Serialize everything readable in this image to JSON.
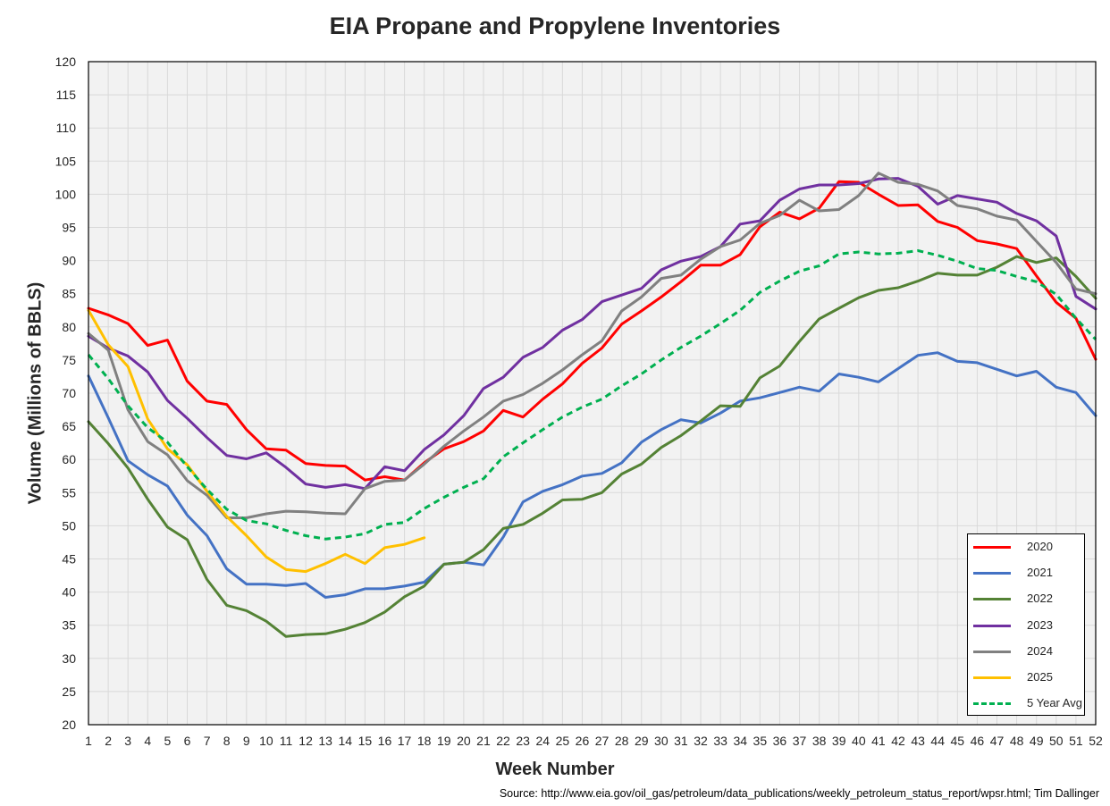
{
  "chart_data": {
    "type": "line",
    "title": "EIA Propane and Propylene Inventories",
    "xlabel": "Week Number",
    "ylabel": "Volume (Millions of BBLS)",
    "source": "Source: http://www.eia.gov/oil_gas/petroleum/data_publications/weekly_petroleum_status_report/wpsr.html; Tim Dallinger",
    "xlim": [
      1,
      52
    ],
    "ylim": [
      20,
      120
    ],
    "yticks": [
      20,
      25,
      30,
      35,
      40,
      45,
      50,
      55,
      60,
      65,
      70,
      75,
      80,
      85,
      90,
      95,
      100,
      105,
      110,
      115,
      120
    ],
    "grid": true,
    "legend_position": "bottom-right",
    "series": [
      {
        "name": "2020",
        "color": "#ff0000",
        "dashed": false,
        "values": [
          82.8,
          81.8,
          80.5,
          77.2,
          78.0,
          71.8,
          68.8,
          68.3,
          64.5,
          61.6,
          61.4,
          59.4,
          59.1,
          59.0,
          56.9,
          57.4,
          56.9,
          59.5,
          61.6,
          62.7,
          64.3,
          67.4,
          66.4,
          69.1,
          71.4,
          74.5,
          76.8,
          80.4,
          82.4,
          84.5,
          86.8,
          89.3,
          89.3,
          90.9,
          95.1,
          97.3,
          96.3,
          97.9,
          101.9,
          101.8,
          100.0,
          98.3,
          98.4,
          95.9,
          95.0,
          93.0,
          92.5,
          91.8,
          87.7,
          83.7,
          81.3,
          75.1
        ]
      },
      {
        "name": "2021",
        "color": "#4472c4",
        "dashed": false,
        "values": [
          72.6,
          66.3,
          59.8,
          57.7,
          56.0,
          51.6,
          48.5,
          43.5,
          41.2,
          41.2,
          41.0,
          41.3,
          39.2,
          39.6,
          40.5,
          40.5,
          40.9,
          41.5,
          44.2,
          44.5,
          44.1,
          48.3,
          53.6,
          55.2,
          56.2,
          57.5,
          57.9,
          59.5,
          62.6,
          64.5,
          66.0,
          65.5,
          67.0,
          68.8,
          69.3,
          70.1,
          70.9,
          70.3,
          72.9,
          72.4,
          71.7,
          73.7,
          75.7,
          76.1,
          74.8,
          74.6,
          73.6,
          72.6,
          73.3,
          70.9,
          70.1,
          66.6
        ]
      },
      {
        "name": "2022",
        "color": "#548235",
        "dashed": false,
        "values": [
          65.7,
          62.4,
          58.7,
          54.0,
          49.8,
          47.9,
          41.9,
          38.0,
          37.2,
          35.6,
          33.3,
          33.6,
          33.7,
          34.4,
          35.4,
          37.0,
          39.3,
          40.9,
          44.2,
          44.5,
          46.4,
          49.6,
          50.2,
          51.9,
          53.9,
          54.0,
          55.0,
          57.8,
          59.3,
          61.8,
          63.6,
          65.8,
          68.1,
          68.0,
          72.3,
          74.1,
          77.8,
          81.2,
          82.8,
          84.4,
          85.5,
          85.9,
          86.9,
          88.1,
          87.8,
          87.8,
          89.0,
          90.6,
          89.7,
          90.4,
          87.6,
          84.3
        ]
      },
      {
        "name": "2023",
        "color": "#7030a0",
        "dashed": false,
        "values": [
          78.6,
          76.8,
          75.6,
          73.2,
          68.9,
          66.2,
          63.3,
          60.6,
          60.1,
          61.0,
          58.8,
          56.3,
          55.8,
          56.2,
          55.6,
          58.9,
          58.3,
          61.5,
          63.7,
          66.6,
          70.7,
          72.4,
          75.4,
          76.9,
          79.5,
          81.1,
          83.8,
          84.8,
          85.8,
          88.6,
          89.9,
          90.6,
          92.1,
          95.5,
          96.0,
          99.1,
          100.8,
          101.4,
          101.4,
          101.6,
          102.3,
          102.4,
          101.2,
          98.5,
          99.8,
          99.3,
          98.8,
          97.1,
          96.0,
          93.7,
          84.6,
          82.7
        ]
      },
      {
        "name": "2024",
        "color": "#808080",
        "dashed": false,
        "values": [
          79.0,
          76.5,
          67.5,
          62.7,
          60.7,
          56.8,
          54.6,
          51.2,
          51.2,
          51.8,
          52.2,
          52.1,
          51.9,
          51.8,
          55.6,
          56.7,
          56.9,
          59.3,
          62.0,
          64.3,
          66.4,
          68.8,
          69.8,
          71.5,
          73.5,
          75.8,
          77.9,
          82.4,
          84.5,
          87.3,
          87.8,
          90.2,
          92.1,
          93.1,
          95.6,
          96.8,
          99.1,
          97.5,
          97.7,
          99.8,
          103.2,
          101.8,
          101.5,
          100.5,
          98.3,
          97.8,
          96.7,
          96.1,
          92.9,
          89.7,
          85.7,
          85.0
        ]
      },
      {
        "name": "2025",
        "color": "#ffc000",
        "dashed": false,
        "values": [
          82.5,
          77.3,
          74.0,
          66.1,
          61.6,
          59.2,
          55.2,
          51.4,
          48.5,
          45.3,
          43.4,
          43.1,
          44.3,
          45.7,
          44.3,
          46.7,
          47.2,
          48.2
        ]
      },
      {
        "name": "5 Year Avg",
        "color": "#00b050",
        "dashed": true,
        "values": [
          75.8,
          72.2,
          68.1,
          64.8,
          62.6,
          58.9,
          55.5,
          52.5,
          50.8,
          50.3,
          49.3,
          48.5,
          48.0,
          48.3,
          48.8,
          50.2,
          50.5,
          52.6,
          54.3,
          55.8,
          57.1,
          60.4,
          62.5,
          64.5,
          66.4,
          67.9,
          69.1,
          71.1,
          72.9,
          75.0,
          76.9,
          78.6,
          80.5,
          82.5,
          85.2,
          86.9,
          88.4,
          89.2,
          91.0,
          91.3,
          91.0,
          91.1,
          91.5,
          90.8,
          89.9,
          88.8,
          88.5,
          87.6,
          86.8,
          84.9,
          81.3,
          78.1
        ]
      }
    ]
  }
}
